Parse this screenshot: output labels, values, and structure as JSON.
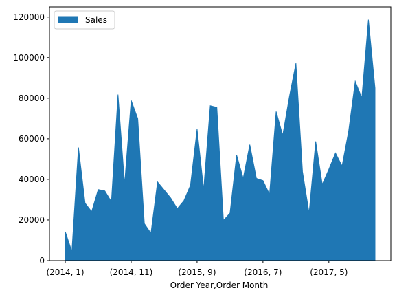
{
  "chart_data": {
    "type": "area",
    "xlabel": "Order Year,Order Month",
    "ylabel": "",
    "ylim": [
      0,
      125000
    ],
    "yticks": [
      0,
      20000,
      40000,
      60000,
      80000,
      100000,
      120000
    ],
    "xtick_labels": [
      "(2014, 1)",
      "(2014, 11)",
      "(2015, 9)",
      "(2016, 7)",
      "(2017, 5)"
    ],
    "xtick_positions": [
      0,
      10,
      20,
      30,
      40
    ],
    "legend": {
      "position": "top-left"
    },
    "grid": false,
    "series": [
      {
        "name": "Sales",
        "color": "#1f77b4",
        "values": [
          14200,
          4500,
          55700,
          28300,
          24100,
          35000,
          34300,
          29000,
          81800,
          37700,
          78900,
          69900,
          18200,
          13400,
          38700,
          34800,
          30800,
          25600,
          29500,
          37100,
          64800,
          35000,
          76300,
          75500,
          19800,
          23400,
          52000,
          40500,
          57100,
          40500,
          39400,
          32600,
          73400,
          61700,
          80600,
          97200,
          43800,
          23400,
          58700,
          37500,
          45000,
          53000,
          46600,
          63700,
          88300,
          80200,
          118700,
          85000
        ]
      }
    ]
  }
}
